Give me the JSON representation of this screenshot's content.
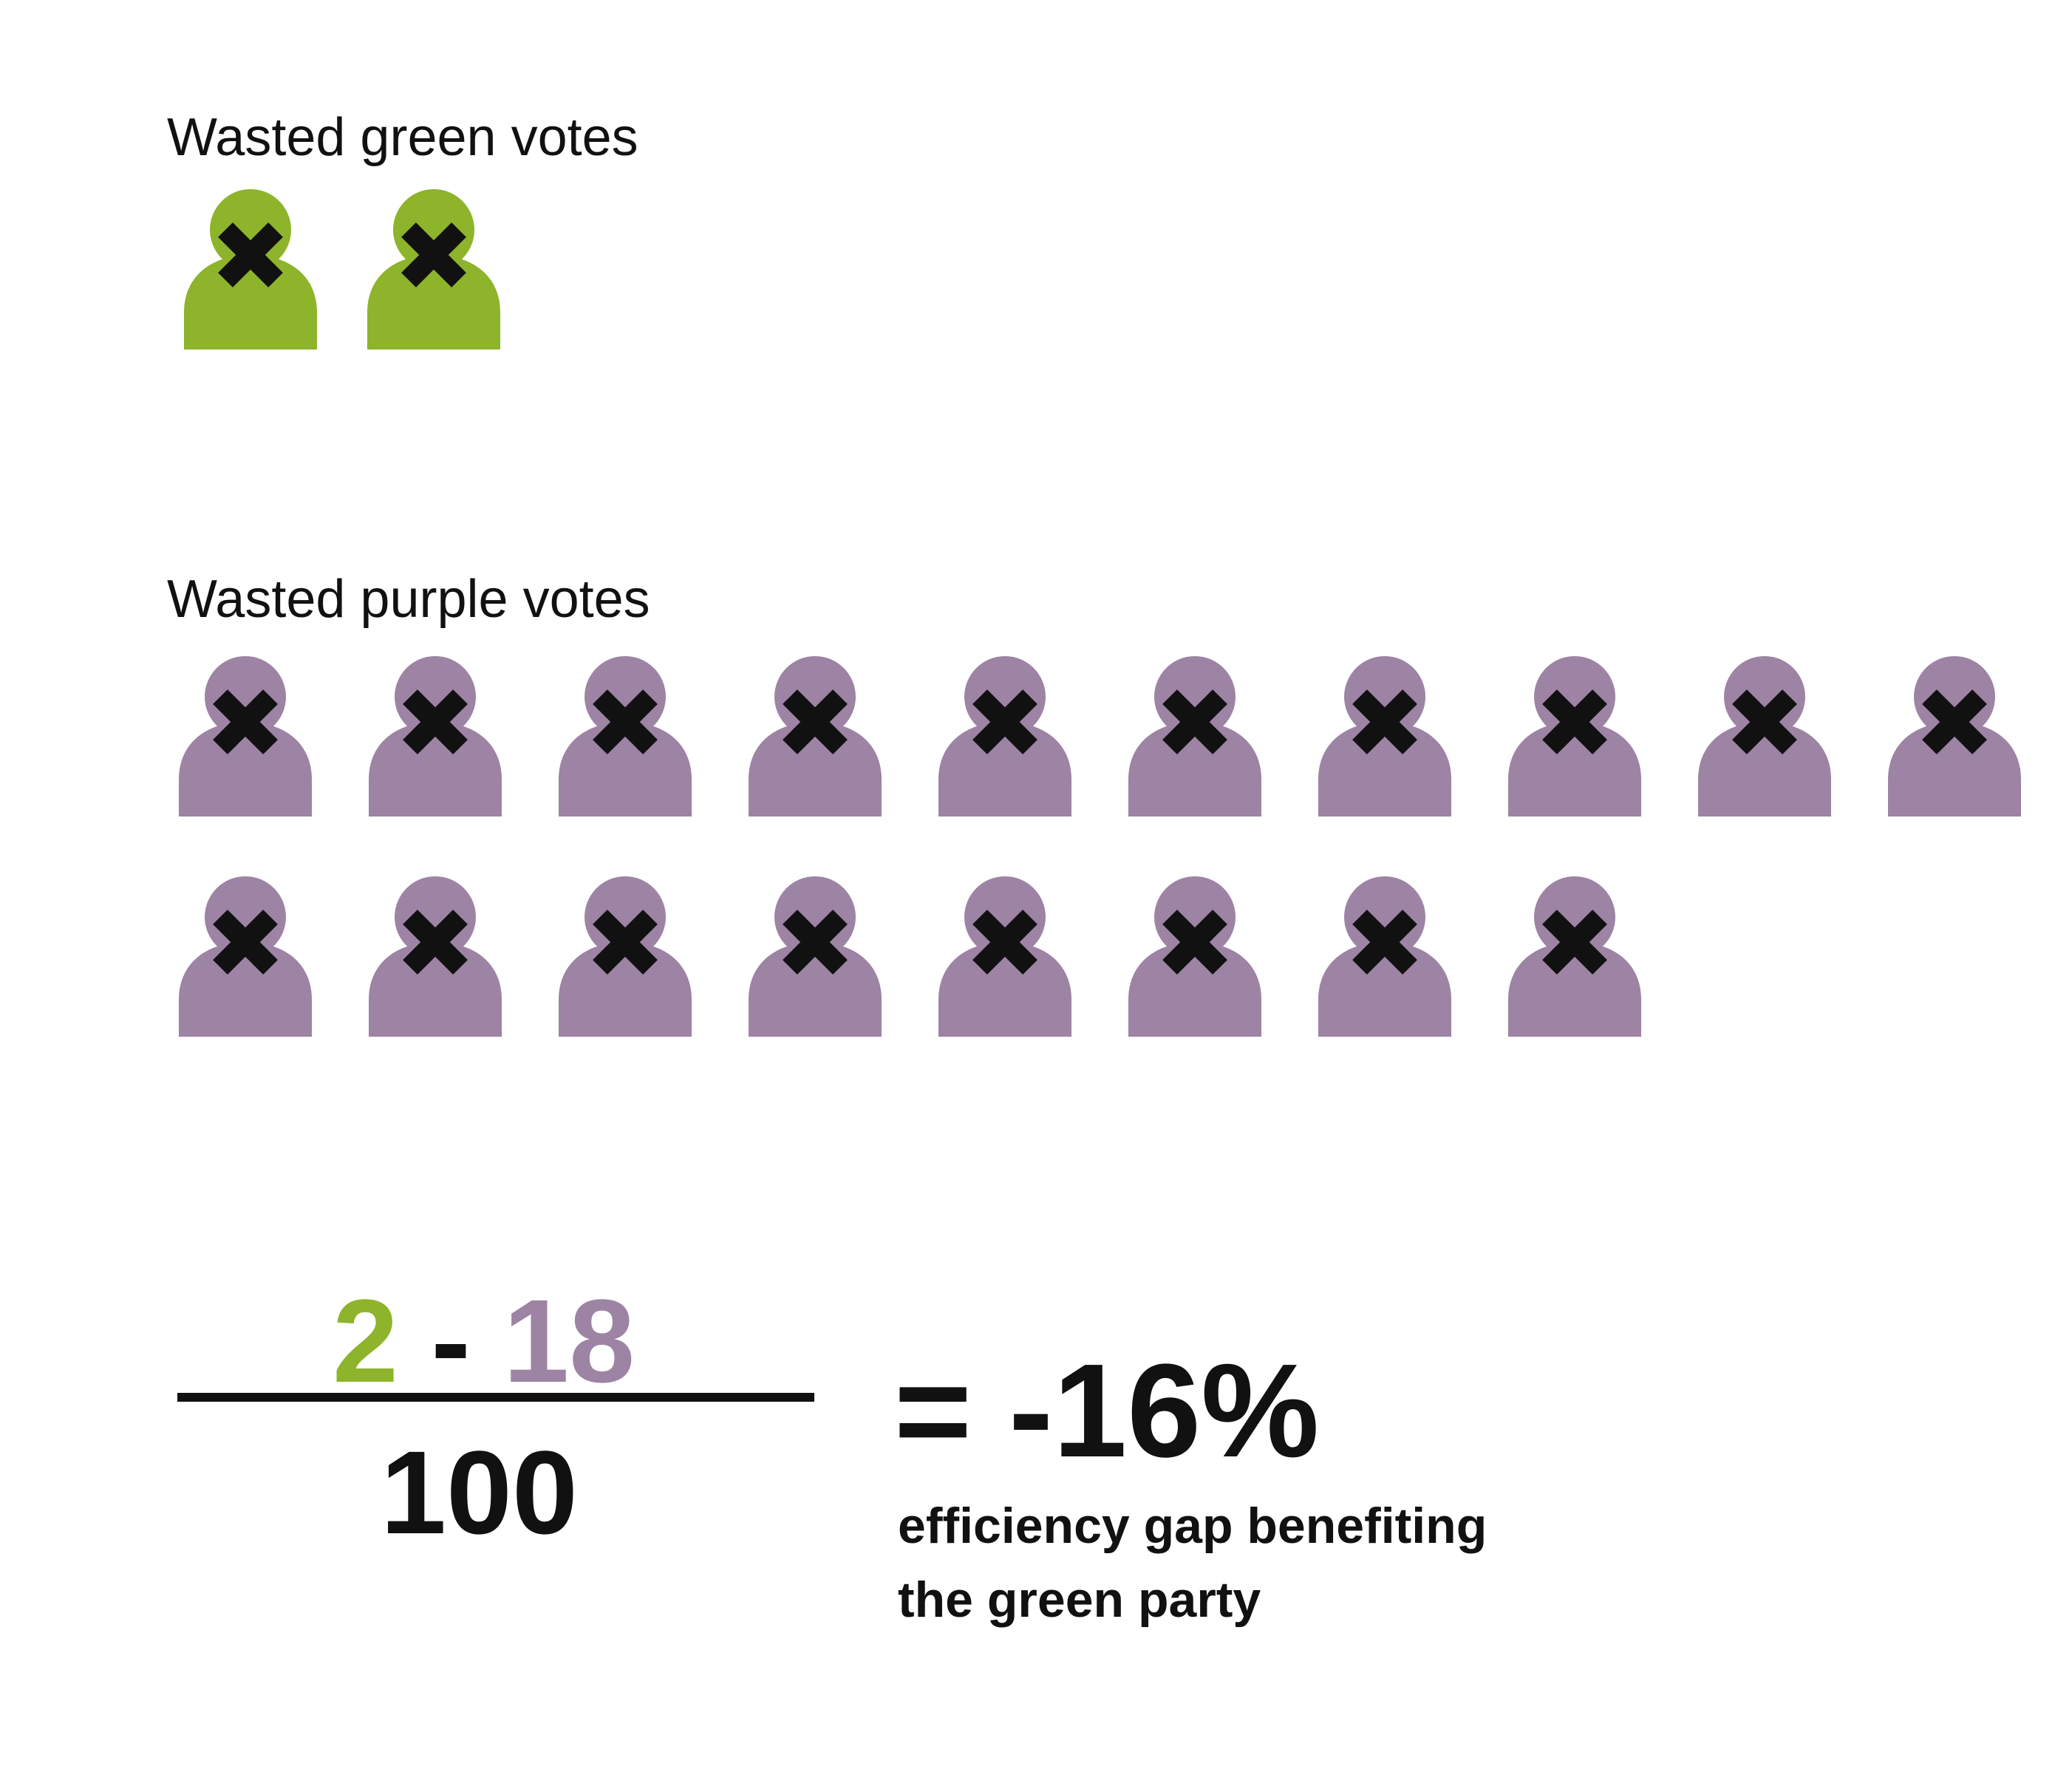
{
  "groups": {
    "green": {
      "heading": "Wasted green votes",
      "count": 2,
      "color": "#8db42b",
      "icon": "person-crossed-icon"
    },
    "purple": {
      "heading": "Wasted purple votes",
      "count": 18,
      "color": "#9d83a4",
      "icon": "person-crossed-icon"
    }
  },
  "formula": {
    "green_value": "2",
    "operator": "-",
    "purple_value": "18",
    "denominator": "100",
    "result": "= -16%",
    "caption_line1": "efficiency gap benefiting",
    "caption_line2": "the green party"
  }
}
